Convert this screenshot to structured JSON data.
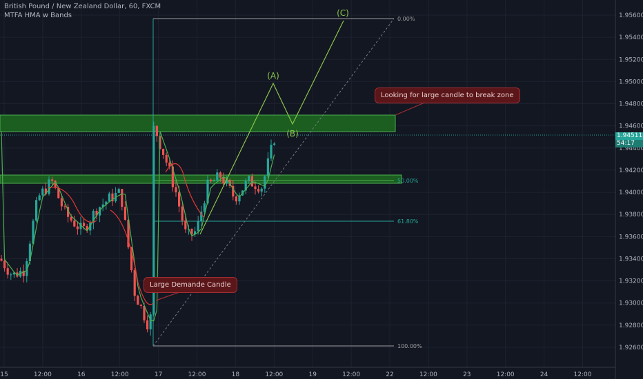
{
  "header": {
    "symbol": "British Pound / New Zealand Dollar, 60, FXCM",
    "indicator": "MTFA HMA w Bands"
  },
  "price_axis": {
    "labels": [
      "1.95600",
      "1.95400",
      "1.95200",
      "1.95000",
      "1.94800",
      "1.94600",
      "1.94400",
      "1.94200",
      "1.94000",
      "1.93800",
      "1.93600",
      "1.93400",
      "1.93200",
      "1.93000",
      "1.92800",
      "1.92600"
    ],
    "current_price": "1.94511",
    "countdown": "54:17"
  },
  "time_axis": {
    "labels": [
      "15",
      "12:00",
      "16",
      "12:00",
      "17",
      "12:00",
      "18",
      "12:00",
      "19",
      "12:00",
      "22",
      "12:00",
      "23",
      "12:00",
      "24",
      "12:00"
    ]
  },
  "fibonacci": {
    "levels": [
      "0.00%",
      "50.00%",
      "61.80%",
      "100.00%"
    ]
  },
  "waves": [
    "(A)",
    "(B)",
    "(C)"
  ],
  "annotations": {
    "break_zone": "Looking for large candle to break zone",
    "demand_candle": "Large Demande Candle"
  },
  "colors": {
    "background": "#131722",
    "bull": "#26a69a",
    "bear": "#ef5350",
    "zone": "#1b5e20",
    "wave": "#8bc34a",
    "fib_line": "#26a69a",
    "hma": "#4caf50",
    "hma_red": "#e53935",
    "current_price_tag": "#26a69a"
  }
}
